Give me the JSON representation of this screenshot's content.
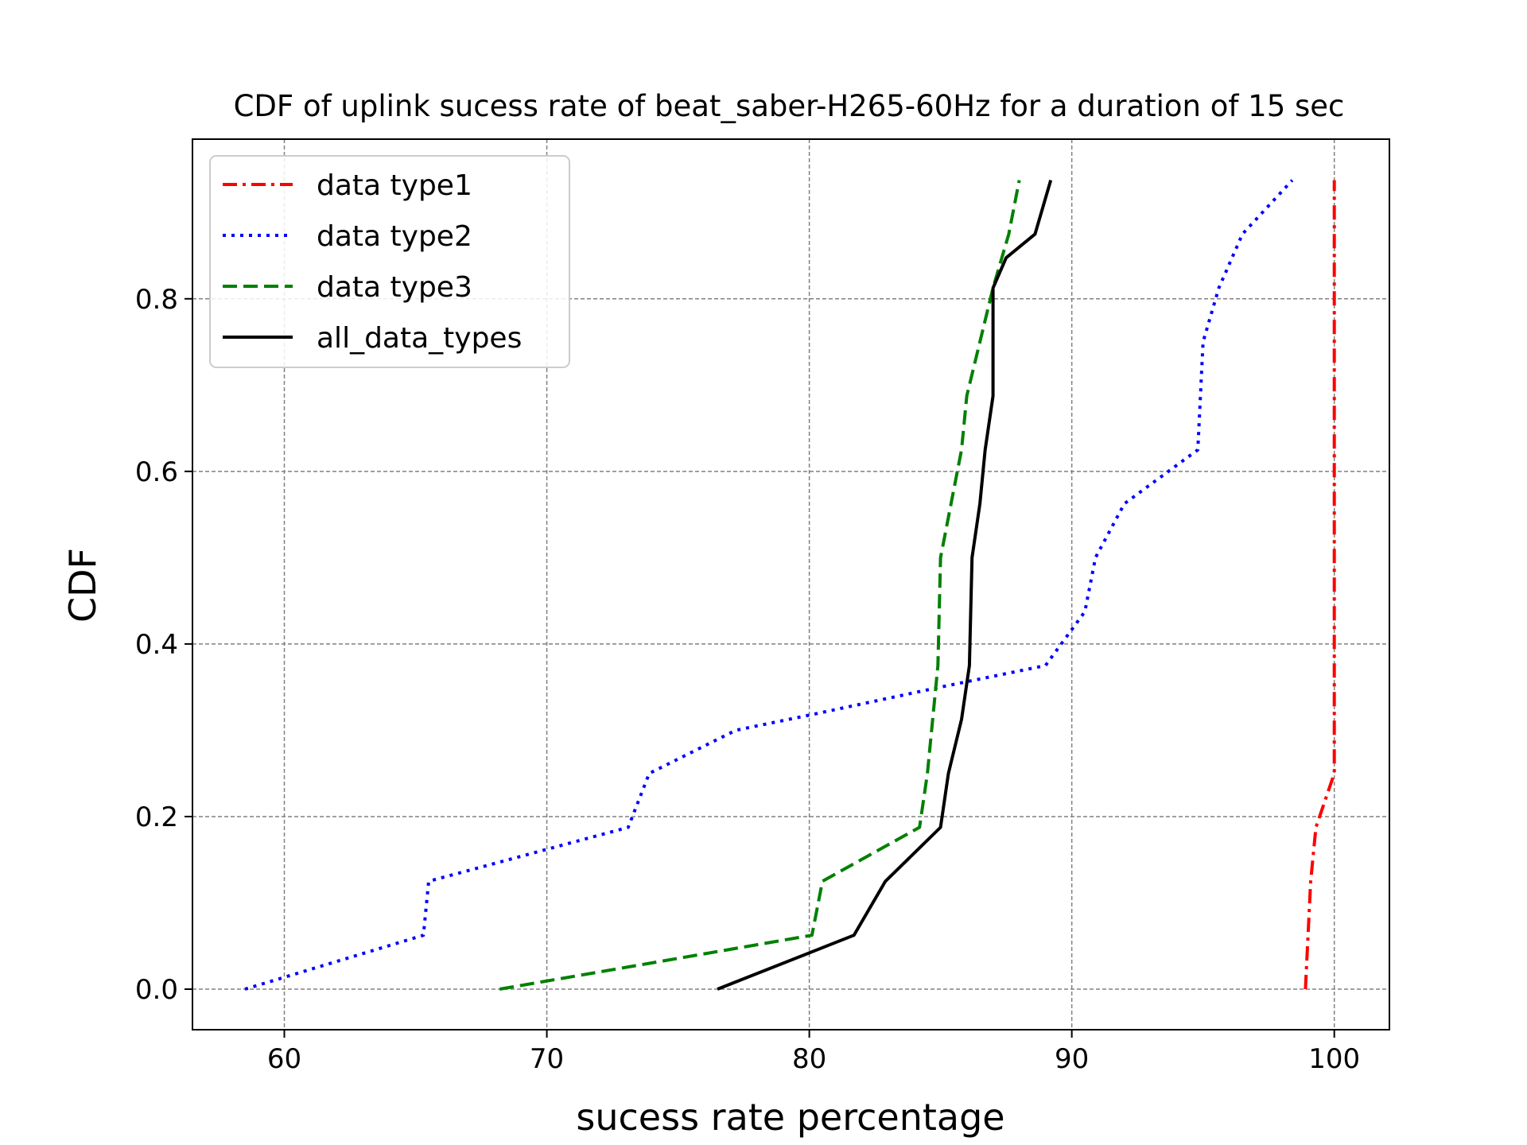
{
  "chart_data": {
    "type": "line",
    "title": "CDF of uplink sucess rate of beat_saber-H265-60Hz for a duration of 15 sec",
    "xlabel": "sucess rate percentage",
    "ylabel": "CDF",
    "xlim": [
      56.5,
      102.1
    ],
    "ylim": [
      -0.047,
      0.985
    ],
    "xticks": [
      60,
      70,
      80,
      90,
      100
    ],
    "xtick_labels": [
      "60",
      "70",
      "80",
      "90",
      "100"
    ],
    "yticks": [
      0.0,
      0.2,
      0.4,
      0.6,
      0.8
    ],
    "ytick_labels": [
      "0.0",
      "0.2",
      "0.4",
      "0.6",
      "0.8"
    ],
    "grid": true,
    "legend_position": "top-left",
    "series": [
      {
        "name": "data type1",
        "color": "#ff0000",
        "style": "dashdot",
        "points": [
          [
            98.9,
            0.0
          ],
          [
            99.0,
            0.0625
          ],
          [
            99.1,
            0.125
          ],
          [
            99.3,
            0.1875
          ],
          [
            100.0,
            0.25
          ],
          [
            100.0,
            0.3125
          ],
          [
            100.0,
            0.375
          ],
          [
            100.0,
            0.4375
          ],
          [
            100.0,
            0.5
          ],
          [
            100.0,
            0.5625
          ],
          [
            100.0,
            0.625
          ],
          [
            100.0,
            0.6875
          ],
          [
            100.0,
            0.75
          ],
          [
            100.0,
            0.8125
          ],
          [
            100.0,
            0.875
          ],
          [
            100.0,
            0.9375
          ]
        ]
      },
      {
        "name": "data type2",
        "color": "#0000ff",
        "style": "dotted",
        "points": [
          [
            58.5,
            0.0
          ],
          [
            65.3,
            0.0625
          ],
          [
            65.5,
            0.125
          ],
          [
            73.1,
            0.1875
          ],
          [
            73.9,
            0.25
          ],
          [
            77.2,
            0.3
          ],
          [
            80.0,
            0.3175
          ],
          [
            85.0,
            0.35
          ],
          [
            89.0,
            0.375
          ],
          [
            90.5,
            0.4375
          ],
          [
            90.9,
            0.5
          ],
          [
            92.0,
            0.5625
          ],
          [
            94.8,
            0.625
          ],
          [
            94.9,
            0.6875
          ],
          [
            95.0,
            0.75
          ],
          [
            95.6,
            0.8125
          ],
          [
            96.5,
            0.875
          ],
          [
            98.4,
            0.9375
          ]
        ]
      },
      {
        "name": "data type3",
        "color": "#008000",
        "style": "dashed",
        "points": [
          [
            68.2,
            0.0
          ],
          [
            80.1,
            0.0625
          ],
          [
            80.5,
            0.125
          ],
          [
            84.2,
            0.1875
          ],
          [
            84.5,
            0.25
          ],
          [
            84.9,
            0.375
          ],
          [
            85.0,
            0.5
          ],
          [
            85.8,
            0.625
          ],
          [
            86.0,
            0.6875
          ],
          [
            86.5,
            0.75
          ],
          [
            87.0,
            0.8125
          ],
          [
            87.6,
            0.875
          ],
          [
            88.0,
            0.9375
          ]
        ]
      },
      {
        "name": "all_data_types",
        "color": "#000000",
        "style": "solid",
        "points": [
          [
            76.5,
            0.0
          ],
          [
            81.7,
            0.0625
          ],
          [
            82.9,
            0.125
          ],
          [
            85.0,
            0.1875
          ],
          [
            85.3,
            0.25
          ],
          [
            85.8,
            0.3125
          ],
          [
            86.1,
            0.375
          ],
          [
            86.2,
            0.5
          ],
          [
            86.5,
            0.5625
          ],
          [
            86.7,
            0.625
          ],
          [
            87.0,
            0.6875
          ],
          [
            87.0,
            0.8125
          ],
          [
            87.5,
            0.8475
          ],
          [
            88.6,
            0.875
          ],
          [
            89.2,
            0.9375
          ]
        ]
      }
    ]
  }
}
